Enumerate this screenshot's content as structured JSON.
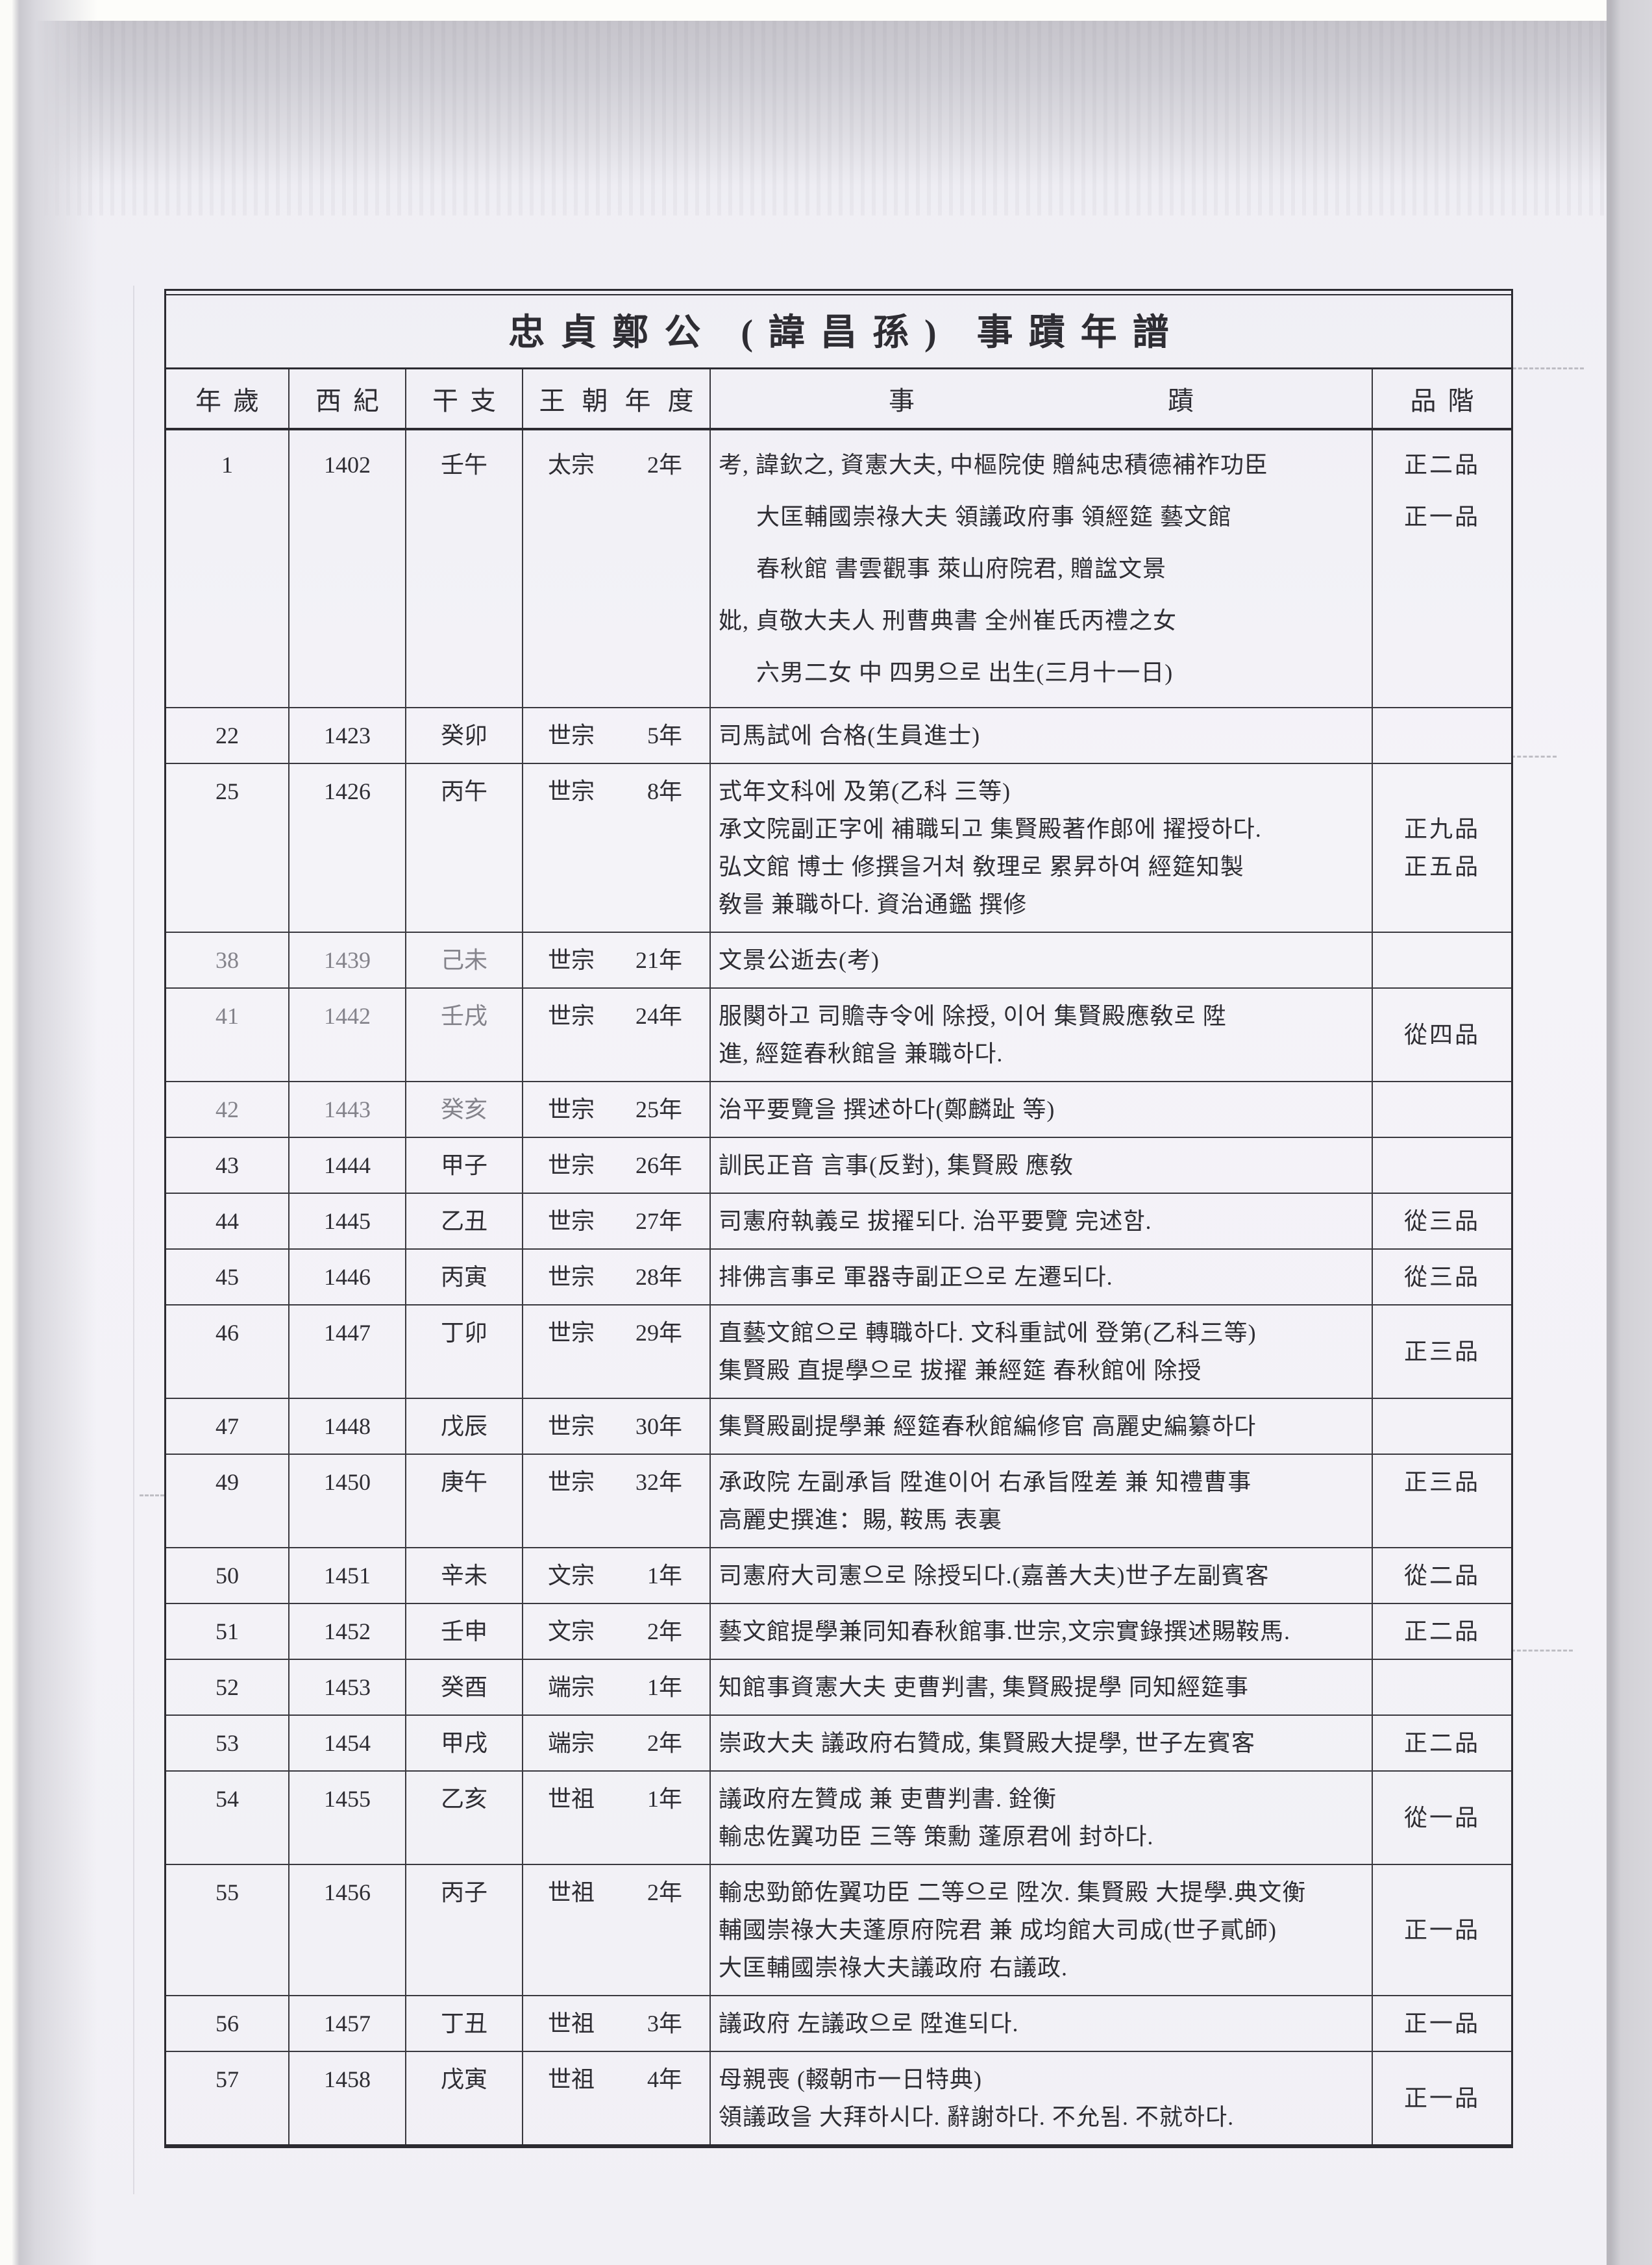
{
  "document": {
    "title": "忠貞鄭公 (諱昌孫) 事蹟年譜",
    "columns": [
      "年歲",
      "西紀",
      "干支",
      "王朝年度",
      "事蹟",
      "品階"
    ],
    "rows": [
      {
        "age": "1",
        "year": "1402",
        "ganji": "壬午",
        "reign": "太宗",
        "reign_year": "2年",
        "events": [
          "考, 諱欽之, 資憲大夫, 中樞院使 贈純忠積德補祚功臣",
          "大匡輔國崇祿大夫 領議政府事 領經筵 藝文館",
          "春秋館 書雲觀事 萊山府院君, 贈諡文景",
          "妣, 貞敬大夫人 刑曹典書 全州崔氏丙禮之女",
          "六男二女 中 四男으로 出生(三月十一日)"
        ],
        "indents": [
          0,
          1,
          1,
          0,
          1
        ],
        "ranks": [
          "正二品",
          "正一品",
          "",
          "",
          ""
        ],
        "airy": true
      },
      {
        "age": "22",
        "year": "1423",
        "ganji": "癸卯",
        "reign": "世宗",
        "reign_year": "5年",
        "events": [
          "司馬試에 合格(生員進士)"
        ]
      },
      {
        "age": "25",
        "year": "1426",
        "ganji": "丙午",
        "reign": "世宗",
        "reign_year": "8年",
        "events": [
          "式年文科에 及第(乙科 三等)",
          "承文院副正字에 補職되고 集賢殿著作郞에 擢授하다.",
          "弘文館 博士 修撰을거쳐 敎理로 累昇하여 經筵知製",
          "敎를 兼職하다. 資治通鑑 撰修"
        ],
        "ranks": [
          "",
          "正九品",
          "正五品",
          ""
        ]
      },
      {
        "age": "38",
        "year": "1439",
        "ganji": "己未",
        "reign": "世宗",
        "reign_year": "21年",
        "events": [
          "文景公逝去(考)"
        ],
        "faded": true
      },
      {
        "age": "41",
        "year": "1442",
        "ganji": "壬戌",
        "reign": "世宗",
        "reign_year": "24年",
        "events": [
          "服闋하고 司贍寺令에 除授, 이어 集賢殿應敎로 陞",
          "進, 經筵春秋館을 兼職하다."
        ],
        "rank_center": "從四品",
        "faded": true
      },
      {
        "age": "42",
        "year": "1443",
        "ganji": "癸亥",
        "reign": "世宗",
        "reign_year": "25年",
        "events": [
          "治平要覽을 撰述하다(鄭麟趾 等)"
        ],
        "faded": true
      },
      {
        "age": "43",
        "year": "1444",
        "ganji": "甲子",
        "reign": "世宗",
        "reign_year": "26年",
        "events": [
          "訓民正音 言事(反對), 集賢殿 應敎"
        ]
      },
      {
        "age": "44",
        "year": "1445",
        "ganji": "乙丑",
        "reign": "世宗",
        "reign_year": "27年",
        "events": [
          "司憲府執義로 拔擢되다. 治平要覽 完述함."
        ],
        "rank_center": "從三品"
      },
      {
        "age": "45",
        "year": "1446",
        "ganji": "丙寅",
        "reign": "世宗",
        "reign_year": "28年",
        "events": [
          "排佛言事로 軍器寺副正으로 左遷되다."
        ],
        "rank_center": "從三品"
      },
      {
        "age": "46",
        "year": "1447",
        "ganji": "丁卯",
        "reign": "世宗",
        "reign_year": "29年",
        "events": [
          "直藝文館으로 轉職하다. 文科重試에 登第(乙科三等)",
          "集賢殿 直提學으로 拔擢 兼經筵 春秋館에 除授"
        ],
        "rank_center": "正三品"
      },
      {
        "age": "47",
        "year": "1448",
        "ganji": "戊辰",
        "reign": "世宗",
        "reign_year": "30年",
        "events": [
          "集賢殿副提學兼 經筵春秋館編修官 高麗史編纂하다"
        ]
      },
      {
        "age": "49",
        "year": "1450",
        "ganji": "庚午",
        "reign": "世宗",
        "reign_year": "32年",
        "events": [
          "承政院 左副承旨 陞進이어 右承旨陞差 兼 知禮曹事",
          "高麗史撰進：賜, 鞍馬 表裏"
        ],
        "ranks": [
          "正三品",
          ""
        ]
      },
      {
        "age": "50",
        "year": "1451",
        "ganji": "辛未",
        "reign": "文宗",
        "reign_year": "1年",
        "events": [
          "司憲府大司憲으로 除授되다.(嘉善大夫)世子左副賓客"
        ],
        "rank_center": "從二品"
      },
      {
        "age": "51",
        "year": "1452",
        "ganji": "壬申",
        "reign": "文宗",
        "reign_year": "2年",
        "events": [
          "藝文館提學兼同知春秋館事.世宗,文宗實錄撰述賜鞍馬."
        ],
        "rank_center": "正二品"
      },
      {
        "age": "52",
        "year": "1453",
        "ganji": "癸酉",
        "reign": "端宗",
        "reign_year": "1年",
        "events": [
          "知館事資憲大夫 吏曹判書, 集賢殿提學 同知經筵事"
        ]
      },
      {
        "age": "53",
        "year": "1454",
        "ganji": "甲戌",
        "reign": "端宗",
        "reign_year": "2年",
        "events": [
          "崇政大夫 議政府右贊成, 集賢殿大提學, 世子左賓客"
        ],
        "rank_center": "正二品"
      },
      {
        "age": "54",
        "year": "1455",
        "ganji": "乙亥",
        "reign": "世祖",
        "reign_year": "1年",
        "events": [
          "議政府左贊成 兼 吏曹判書. 銓衡",
          "輸忠佐翼功臣 三等 策勳 蓬原君에 封하다."
        ],
        "rank_center": "從一品"
      },
      {
        "age": "55",
        "year": "1456",
        "ganji": "丙子",
        "reign": "世祖",
        "reign_year": "2年",
        "events": [
          "輸忠勁節佐翼功臣 二等으로 陞次. 集賢殿 大提學.典文衡",
          "輔國崇祿大夫蓬原府院君 兼 成均館大司成(世子貳師)",
          "大匡輔國崇祿大夫議政府 右議政."
        ],
        "rank_center": "正一品"
      },
      {
        "age": "56",
        "year": "1457",
        "ganji": "丁丑",
        "reign": "世祖",
        "reign_year": "3年",
        "events": [
          "議政府 左議政으로 陞進되다."
        ],
        "rank_center": "正一品"
      },
      {
        "age": "57",
        "year": "1458",
        "ganji": "戊寅",
        "reign": "世祖",
        "reign_year": "4年",
        "events": [
          "母親喪 (輟朝市一日特典)",
          "領議政을 大拜하시다. 辭謝하다. 不允됨. 不就하다."
        ],
        "rank_center": "正一品"
      }
    ]
  }
}
